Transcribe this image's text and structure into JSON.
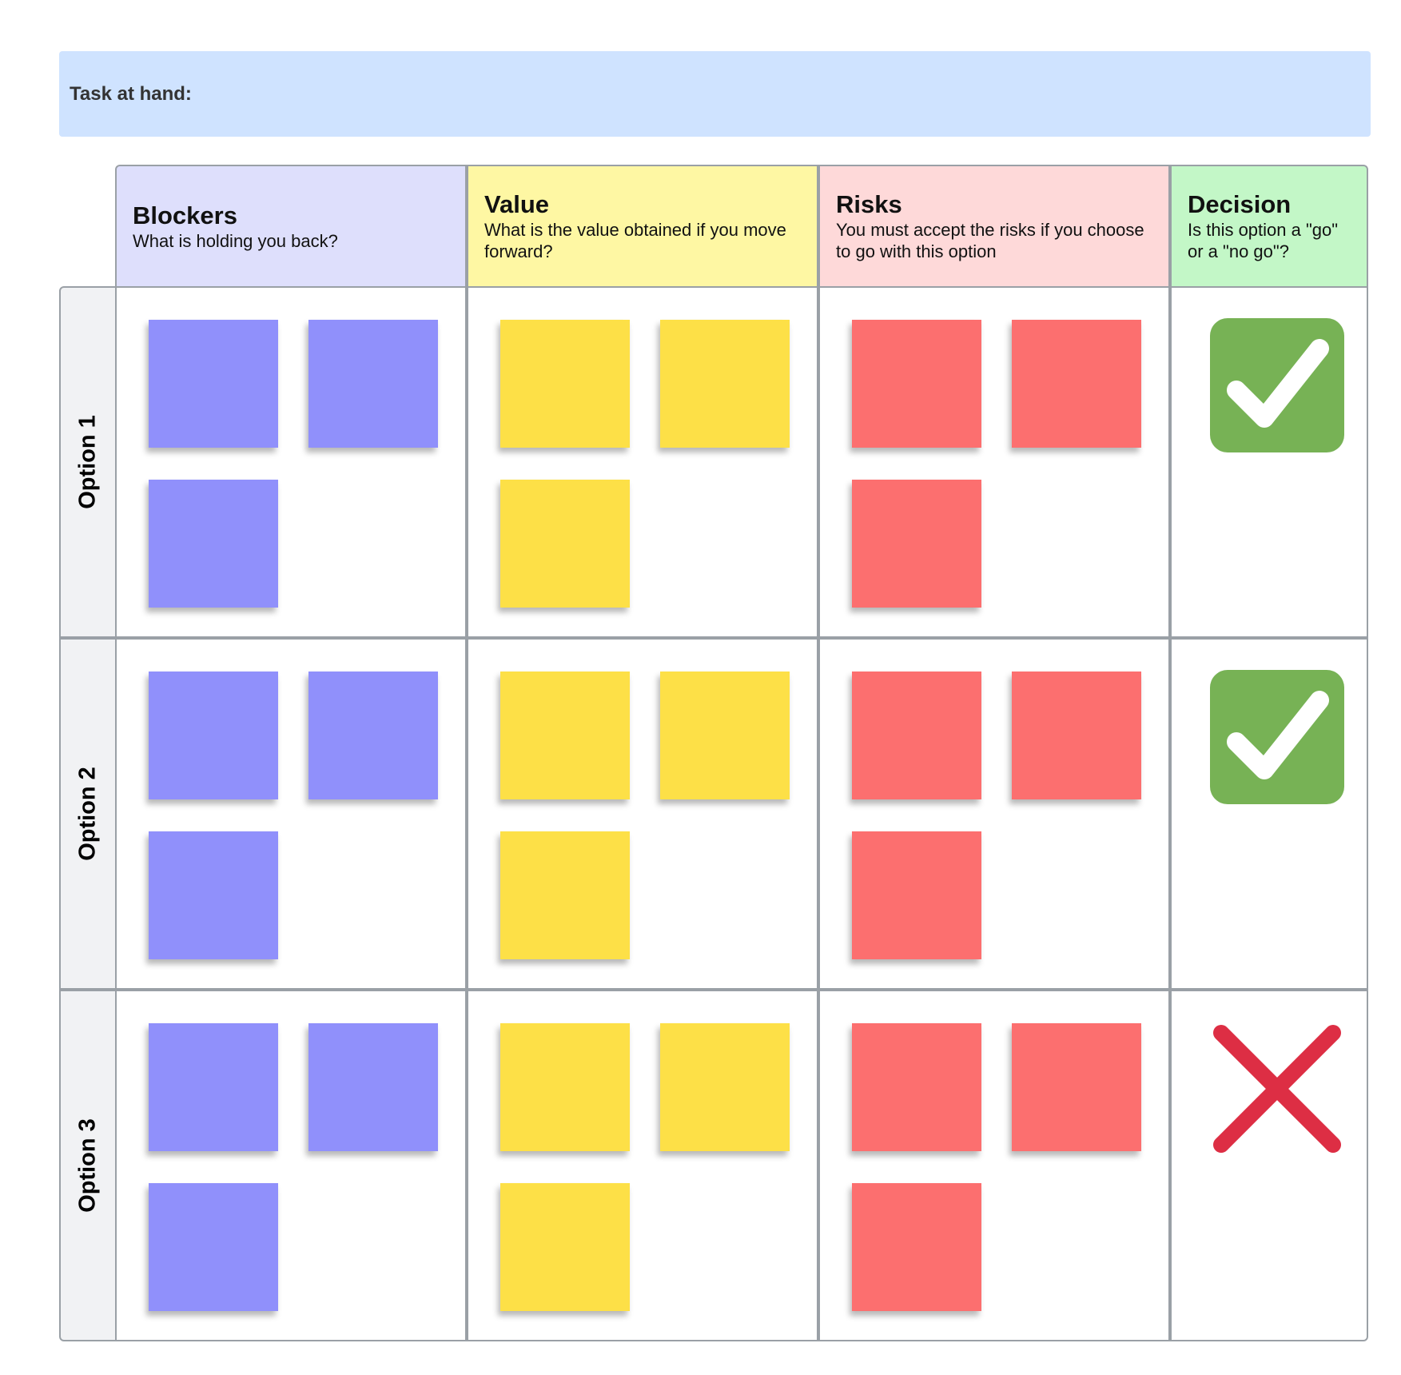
{
  "task": {
    "label": "Task at hand:",
    "value": ""
  },
  "columns": [
    {
      "key": "blockers",
      "title": "Blockers",
      "subtitle": "What is holding you back?",
      "header_color": "#dedffc",
      "note_color": "#9090fb"
    },
    {
      "key": "value",
      "title": "Value",
      "subtitle": "What is the value obtained if you move forward?",
      "header_color": "#fef7a3",
      "note_color": "#fde047"
    },
    {
      "key": "risks",
      "title": "Risks",
      "subtitle": "You must accept the risks if you choose to go with this option",
      "header_color": "#fed9d9",
      "note_color": "#fc6f6f"
    },
    {
      "key": "decision",
      "title": "Decision",
      "subtitle": "Is this option a \"go\" or a \"no go\"?",
      "header_color": "#c3f7c7"
    }
  ],
  "options": [
    {
      "label": "Option 1",
      "notes": {
        "blockers": 3,
        "value": 3,
        "risks": 3
      },
      "decision": "go"
    },
    {
      "label": "Option 2",
      "notes": {
        "blockers": 3,
        "value": 3,
        "risks": 3
      },
      "decision": "go"
    },
    {
      "label": "Option 3",
      "notes": {
        "blockers": 3,
        "value": 3,
        "risks": 3
      },
      "decision": "no-go"
    }
  ],
  "icons": {
    "go": "checkmark-icon",
    "no_go": "x-mark-icon"
  },
  "colors": {
    "go_badge": "#77b255",
    "no_go_mark": "#dd2e44",
    "border": "#9aa0a6",
    "row_header_bg": "#f1f2f4",
    "task_bar": "#cfe3ff"
  }
}
